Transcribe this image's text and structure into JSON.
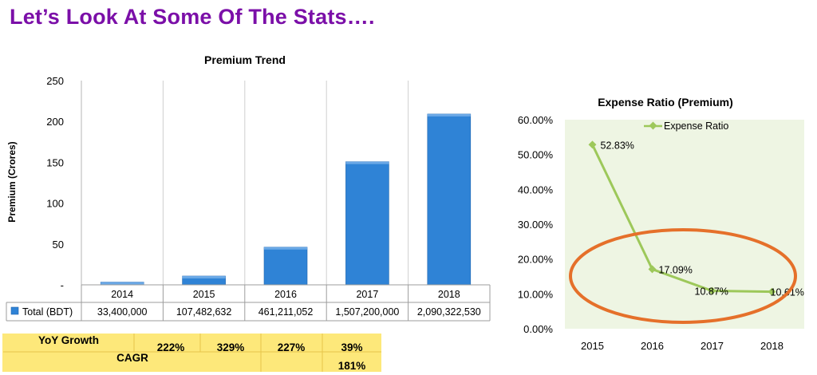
{
  "slide": {
    "title": "Let’s Look At Some Of The Stats…."
  },
  "chart_data": [
    {
      "type": "bar",
      "title": "Premium Trend",
      "ylabel": "Premium (Crores)",
      "xlabel": "",
      "ylim": [
        0,
        250
      ],
      "yticks": [
        "-",
        "50",
        "100",
        "150",
        "200",
        "250"
      ],
      "categories": [
        "2014",
        "2015",
        "2016",
        "2017",
        "2018"
      ],
      "series": [
        {
          "name": "Total (BDT)",
          "values": [
            3.34,
            10.75,
            46.12,
            150.72,
            209.03
          ],
          "table_values": [
            "33,400,000",
            "107,482,632",
            "461,211,052",
            "1,507,200,000",
            "2,090,322,530"
          ],
          "color": "#2f83d6"
        }
      ],
      "grid": true,
      "legend": "data-table"
    },
    {
      "type": "line",
      "title": "Expense Ratio (Premium)",
      "xlabel": "",
      "ylabel": "",
      "ylim": [
        0,
        0.6
      ],
      "yticks": [
        "0.00%",
        "10.00%",
        "20.00%",
        "30.00%",
        "40.00%",
        "50.00%",
        "60.00%"
      ],
      "categories": [
        "2015",
        "2016",
        "2017",
        "2018"
      ],
      "series": [
        {
          "name": "Expense Ratio",
          "values": [
            0.5283,
            0.1709,
            0.1087,
            0.1061
          ],
          "labels": [
            "52.83%",
            "17.09%",
            "10.87%",
            "10.61%"
          ],
          "color": "#9dc85a"
        }
      ],
      "background": "#eef5e3",
      "legend": "top",
      "annotation_color": "#e5702a"
    }
  ],
  "growth_table": {
    "yoy_label": "YoY Growth",
    "yoy_values": [
      "222%",
      "329%",
      "227%",
      "39%"
    ],
    "cagr_label": "CAGR",
    "cagr_value": "181%",
    "fill": "#fde87a"
  }
}
